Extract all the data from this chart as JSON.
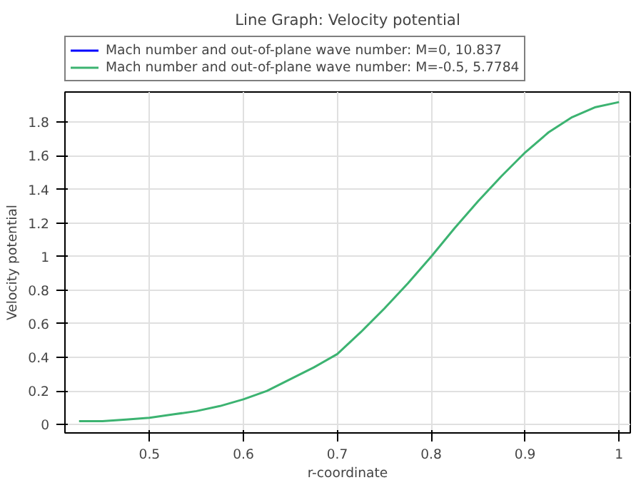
{
  "chart_data": {
    "type": "line",
    "title": "Line Graph: Velocity potential",
    "xlabel": "r-coordinate",
    "ylabel": "Velocity potential",
    "x": [
      0.425,
      0.45,
      0.475,
      0.5,
      0.525,
      0.55,
      0.575,
      0.6,
      0.625,
      0.65,
      0.675,
      0.7,
      0.725,
      0.75,
      0.775,
      0.8,
      0.825,
      0.85,
      0.875,
      0.9,
      0.925,
      0.95,
      0.975,
      1.0
    ],
    "series": [
      {
        "name": "Mach number and out-of-plane wave number: M=0, 10.837",
        "color": "#0000ff",
        "values": [
          null,
          null,
          null,
          null,
          null,
          null,
          null,
          null,
          null,
          null,
          null,
          null,
          null,
          null,
          null,
          null,
          null,
          null,
          null,
          null,
          null,
          null,
          null,
          null
        ]
      },
      {
        "name": "Mach number and out-of-plane wave number: M=-0.5, 5.7784",
        "color": "#3cb371",
        "values": [
          0.02,
          0.02,
          0.03,
          0.04,
          0.06,
          0.08,
          0.11,
          0.15,
          0.2,
          0.27,
          0.34,
          0.42,
          0.55,
          0.69,
          0.84,
          1.0,
          1.17,
          1.33,
          1.48,
          1.62,
          1.74,
          1.83,
          1.89,
          1.92
        ]
      }
    ],
    "xlim": [
      0.41,
      1.012
    ],
    "ylim": [
      -0.05,
      1.98
    ],
    "xticks": [
      0.5,
      0.6,
      0.7,
      0.8,
      0.9,
      1
    ],
    "yticks": [
      0,
      0.2,
      0.4,
      0.6,
      0.8,
      1,
      1.2,
      1.4,
      1.6,
      1.8
    ],
    "grid": true,
    "legend": "top left",
    "line_style": "solid",
    "marker": "none"
  }
}
